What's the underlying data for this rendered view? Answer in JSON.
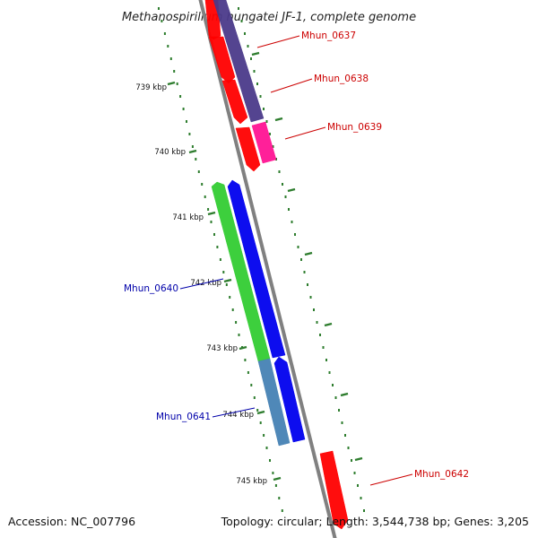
{
  "title": "Methanospirillum hungatei JF-1, complete genome",
  "footer": {
    "accession": "Accession: NC_007796",
    "summary": "Topology: circular; Length: 3,544,738 bp; Genes: 3,205"
  },
  "colors": {
    "backbone": "#808080",
    "tick": "#2e7d2e",
    "label_forward": "#cc0000",
    "label_reverse": "#0000aa"
  },
  "ticks": [
    {
      "label": "739 kbp"
    },
    {
      "label": "740 kbp"
    },
    {
      "label": "741 kbp"
    },
    {
      "label": "742 kbp"
    },
    {
      "label": "743 kbp"
    },
    {
      "label": "744 kbp"
    },
    {
      "label": "745 kbp"
    }
  ],
  "gene_labels": [
    {
      "name": "Mhun_0637",
      "strand": "forward"
    },
    {
      "name": "Mhun_0638",
      "strand": "forward"
    },
    {
      "name": "Mhun_0639",
      "strand": "forward"
    },
    {
      "name": "Mhun_0640",
      "strand": "reverse"
    },
    {
      "name": "Mhun_0641",
      "strand": "reverse"
    },
    {
      "name": "Mhun_0642",
      "strand": "forward"
    }
  ],
  "features": [
    {
      "name": "red-orf",
      "color": "#ff0000"
    },
    {
      "name": "purple-orf",
      "color": "#4b3a8a"
    },
    {
      "name": "pink-orf",
      "color": "#ff1493"
    },
    {
      "name": "green-orf",
      "color": "#33cc33"
    },
    {
      "name": "blue-orf",
      "color": "#0000ee"
    },
    {
      "name": "steelblue-orf",
      "color": "#4682b4"
    }
  ]
}
